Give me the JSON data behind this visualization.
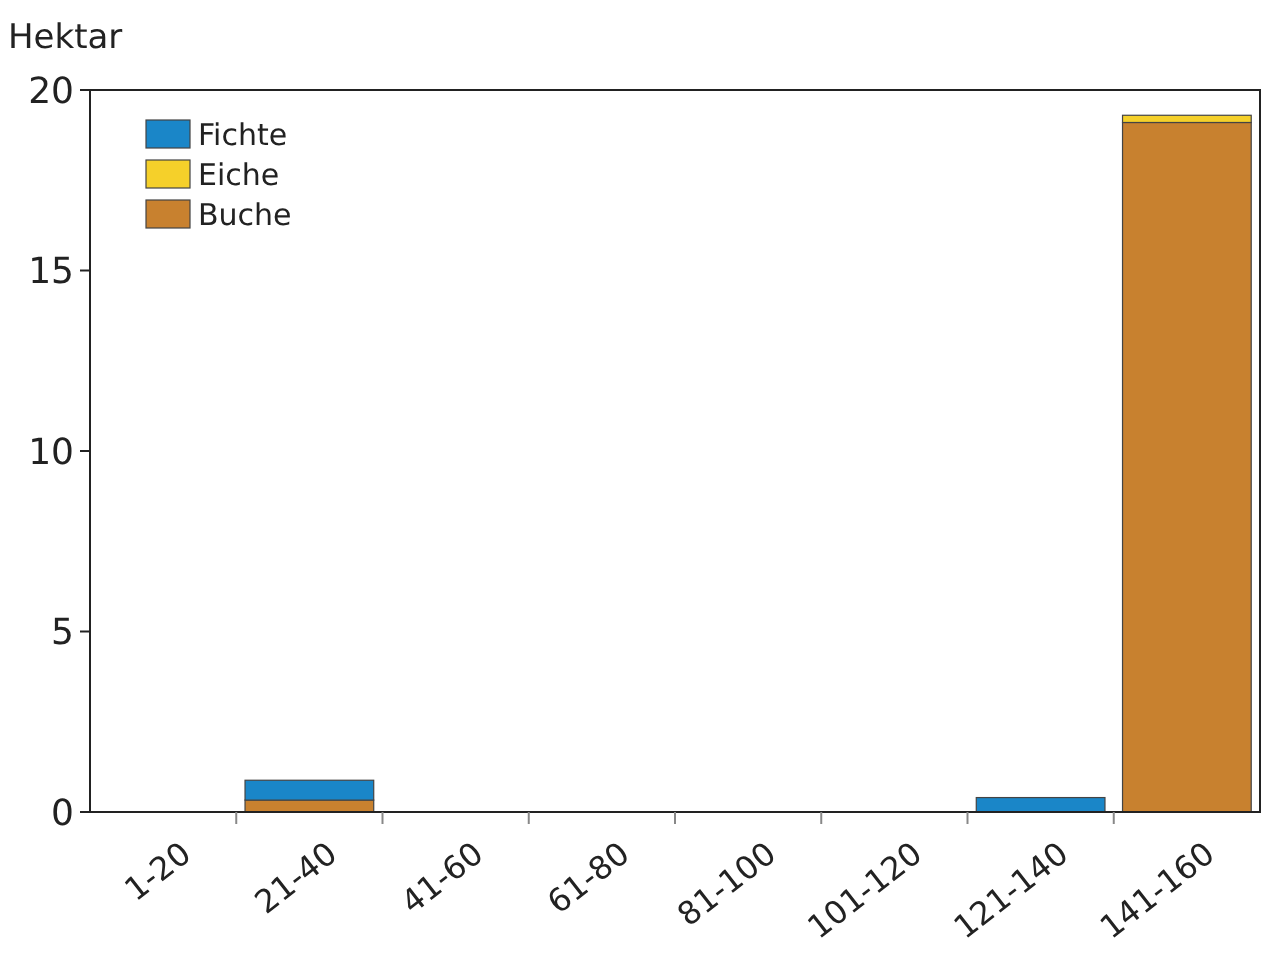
{
  "chart_data": {
    "type": "bar",
    "ylabel": "Hektar",
    "stacked": true,
    "categories": [
      "1-20",
      "21-40",
      "41-60",
      "61-80",
      "81-100",
      "101-120",
      "121-140",
      "141-160"
    ],
    "series": [
      {
        "name": "Buche",
        "color": "#c8812f",
        "values": [
          0,
          0.33,
          0,
          0,
          0,
          0,
          0,
          19.1
        ]
      },
      {
        "name": "Eiche",
        "color": "#f5d02a",
        "values": [
          0,
          0,
          0,
          0,
          0,
          0,
          0,
          0.2
        ]
      },
      {
        "name": "Fichte",
        "color": "#1a86c8",
        "values": [
          0,
          0.55,
          0,
          0,
          0,
          0,
          0.4,
          0
        ]
      }
    ],
    "ylim": [
      0,
      20
    ],
    "yticks": [
      0,
      5,
      10,
      15,
      20
    ],
    "grid": false,
    "legend": "top left"
  }
}
